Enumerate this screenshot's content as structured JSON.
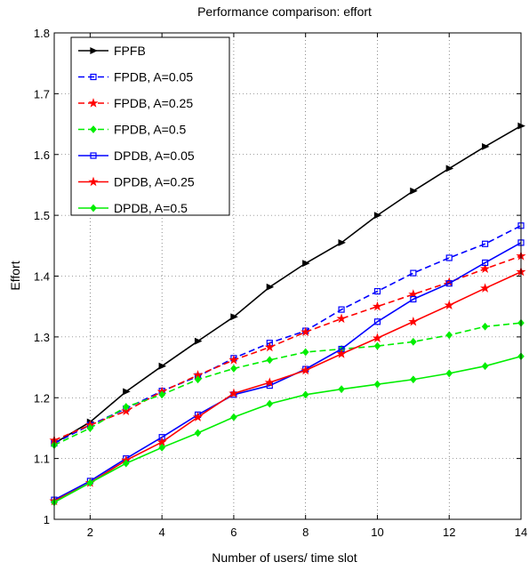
{
  "chart_data": {
    "type": "line",
    "title": "Performance comparison: effort",
    "xlabel": "Number of users/ time slot",
    "ylabel": "Effort",
    "xlim": [
      1,
      14
    ],
    "ylim": [
      1,
      1.8
    ],
    "xticks": [
      2,
      4,
      6,
      8,
      10,
      12,
      14
    ],
    "yticks": [
      1,
      1.1,
      1.2,
      1.3,
      1.4,
      1.5,
      1.6,
      1.7,
      1.8
    ],
    "ytick_labels": [
      "1",
      "1.1",
      "1.2",
      "1.3",
      "1.4",
      "1.5",
      "1.6",
      "1.7",
      "1.8"
    ],
    "grid": true,
    "legend_position": "top-left",
    "x": [
      1,
      2,
      3,
      4,
      5,
      6,
      7,
      8,
      9,
      10,
      11,
      12,
      13,
      14
    ],
    "series": [
      {
        "name": "FPFB",
        "color": "#000000",
        "dashed": false,
        "marker": "triangle-right",
        "values": [
          1.125,
          1.16,
          1.21,
          1.252,
          1.293,
          1.333,
          1.382,
          1.421,
          1.455,
          1.5,
          1.54,
          1.577,
          1.613,
          1.647
        ]
      },
      {
        "name": "FPDB, A=0.05",
        "color": "#0000ff",
        "dashed": true,
        "marker": "square",
        "values": [
          1.125,
          1.155,
          1.182,
          1.211,
          1.235,
          1.265,
          1.29,
          1.31,
          1.345,
          1.375,
          1.405,
          1.43,
          1.453,
          1.483
        ]
      },
      {
        "name": "FPDB, A=0.25",
        "color": "#ff0000",
        "dashed": true,
        "marker": "star",
        "values": [
          1.13,
          1.155,
          1.178,
          1.21,
          1.237,
          1.262,
          1.283,
          1.308,
          1.33,
          1.35,
          1.37,
          1.39,
          1.412,
          1.433
        ]
      },
      {
        "name": "FPDB, A=0.5",
        "color": "#00ee00",
        "dashed": true,
        "marker": "diamond",
        "values": [
          1.122,
          1.15,
          1.185,
          1.205,
          1.23,
          1.248,
          1.262,
          1.275,
          1.28,
          1.285,
          1.292,
          1.303,
          1.317,
          1.323
        ]
      },
      {
        "name": "DPDB, A=0.05",
        "color": "#0000ff",
        "dashed": false,
        "marker": "square",
        "values": [
          1.032,
          1.063,
          1.1,
          1.135,
          1.172,
          1.205,
          1.22,
          1.247,
          1.28,
          1.325,
          1.362,
          1.388,
          1.422,
          1.455
        ]
      },
      {
        "name": "DPDB, A=0.25",
        "color": "#ff0000",
        "dashed": false,
        "marker": "star",
        "values": [
          1.03,
          1.06,
          1.097,
          1.127,
          1.168,
          1.207,
          1.225,
          1.245,
          1.272,
          1.298,
          1.325,
          1.352,
          1.38,
          1.407
        ]
      },
      {
        "name": "DPDB, A=0.5",
        "color": "#00ee00",
        "dashed": false,
        "marker": "diamond",
        "values": [
          1.028,
          1.06,
          1.092,
          1.118,
          1.142,
          1.168,
          1.19,
          1.205,
          1.214,
          1.222,
          1.23,
          1.24,
          1.252,
          1.268
        ]
      }
    ]
  }
}
